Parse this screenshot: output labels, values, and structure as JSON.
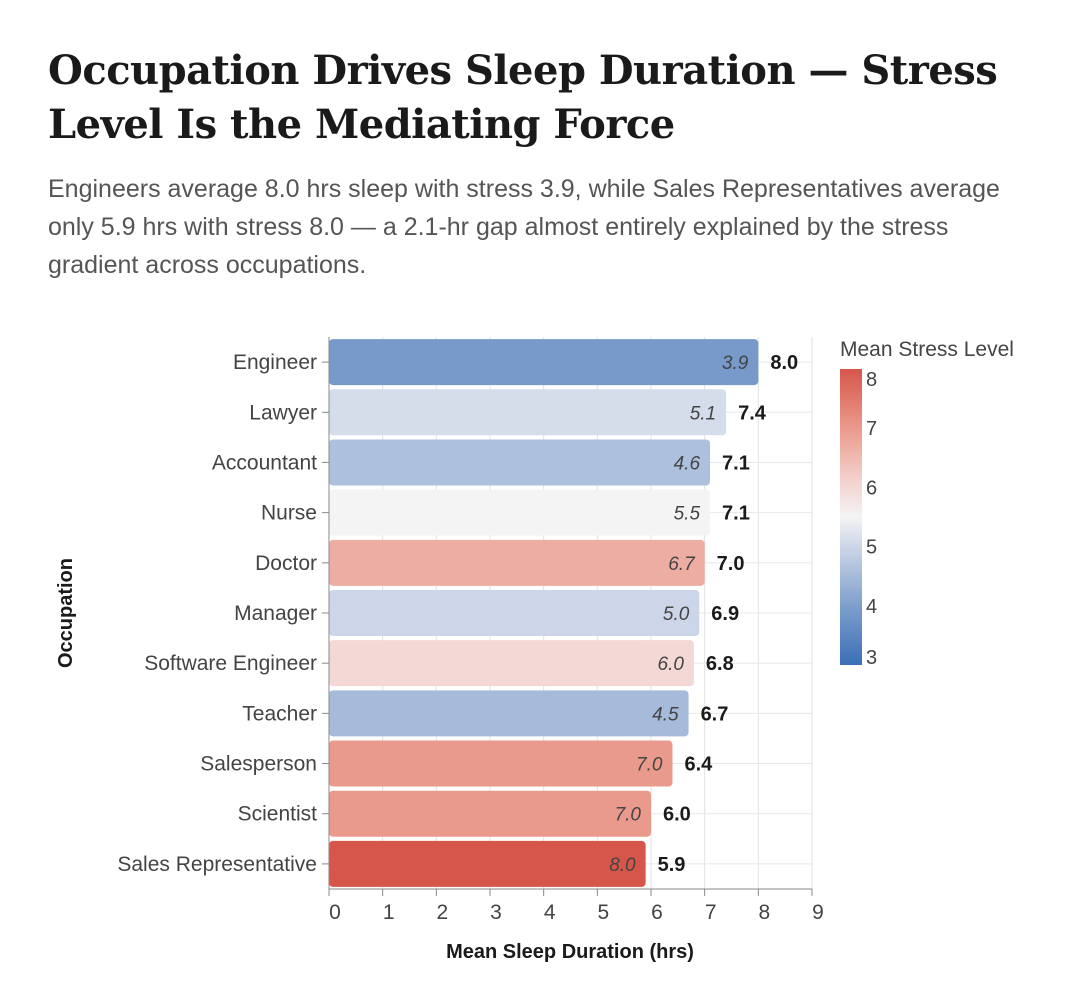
{
  "header": {
    "title": "Occupation Drives Sleep Duration — Stress Level Is the Mediating Force",
    "subtitle": "Engineers average 8.0 hrs sleep with stress 3.9, while Sales Representatives average only 5.9 hrs with stress 8.0 — a 2.1-hr gap almost entirely explained by the stress gradient across occupations."
  },
  "chart_data": {
    "type": "bar",
    "orientation": "horizontal",
    "xlabel": "Mean Sleep Duration (hrs)",
    "ylabel": "Occupation",
    "xlim": [
      0,
      9
    ],
    "xticks": [
      0,
      1,
      2,
      3,
      4,
      5,
      6,
      7,
      8,
      9
    ],
    "grid": true,
    "categories": [
      "Engineer",
      "Lawyer",
      "Accountant",
      "Nurse",
      "Doctor",
      "Manager",
      "Software Engineer",
      "Teacher",
      "Salesperson",
      "Scientist",
      "Sales Representative"
    ],
    "values": [
      8.0,
      7.4,
      7.1,
      7.1,
      7.0,
      6.9,
      6.8,
      6.7,
      6.4,
      6.0,
      5.9
    ],
    "value_labels": [
      "8.0",
      "7.4",
      "7.1",
      "7.1",
      "7.0",
      "6.9",
      "6.8",
      "6.7",
      "6.4",
      "6.0",
      "5.9"
    ],
    "stress": [
      3.9,
      5.1,
      4.6,
      5.5,
      6.7,
      5.0,
      6.0,
      4.5,
      7.0,
      7.0,
      8.0
    ],
    "stress_labels": [
      "3.9",
      "5.1",
      "4.6",
      "5.5",
      "6.7",
      "5.0",
      "6.0",
      "4.5",
      "7.0",
      "7.0",
      "8.0"
    ],
    "legend": {
      "title": "Mean Stress Level",
      "placement": "right",
      "domain": [
        3,
        8
      ],
      "ticks": [
        "8",
        "7",
        "6",
        "5",
        "4",
        "3"
      ],
      "colors": {
        "low": "#3b6fb6",
        "mid": "#f4f4f4",
        "high": "#d6564a"
      }
    }
  }
}
